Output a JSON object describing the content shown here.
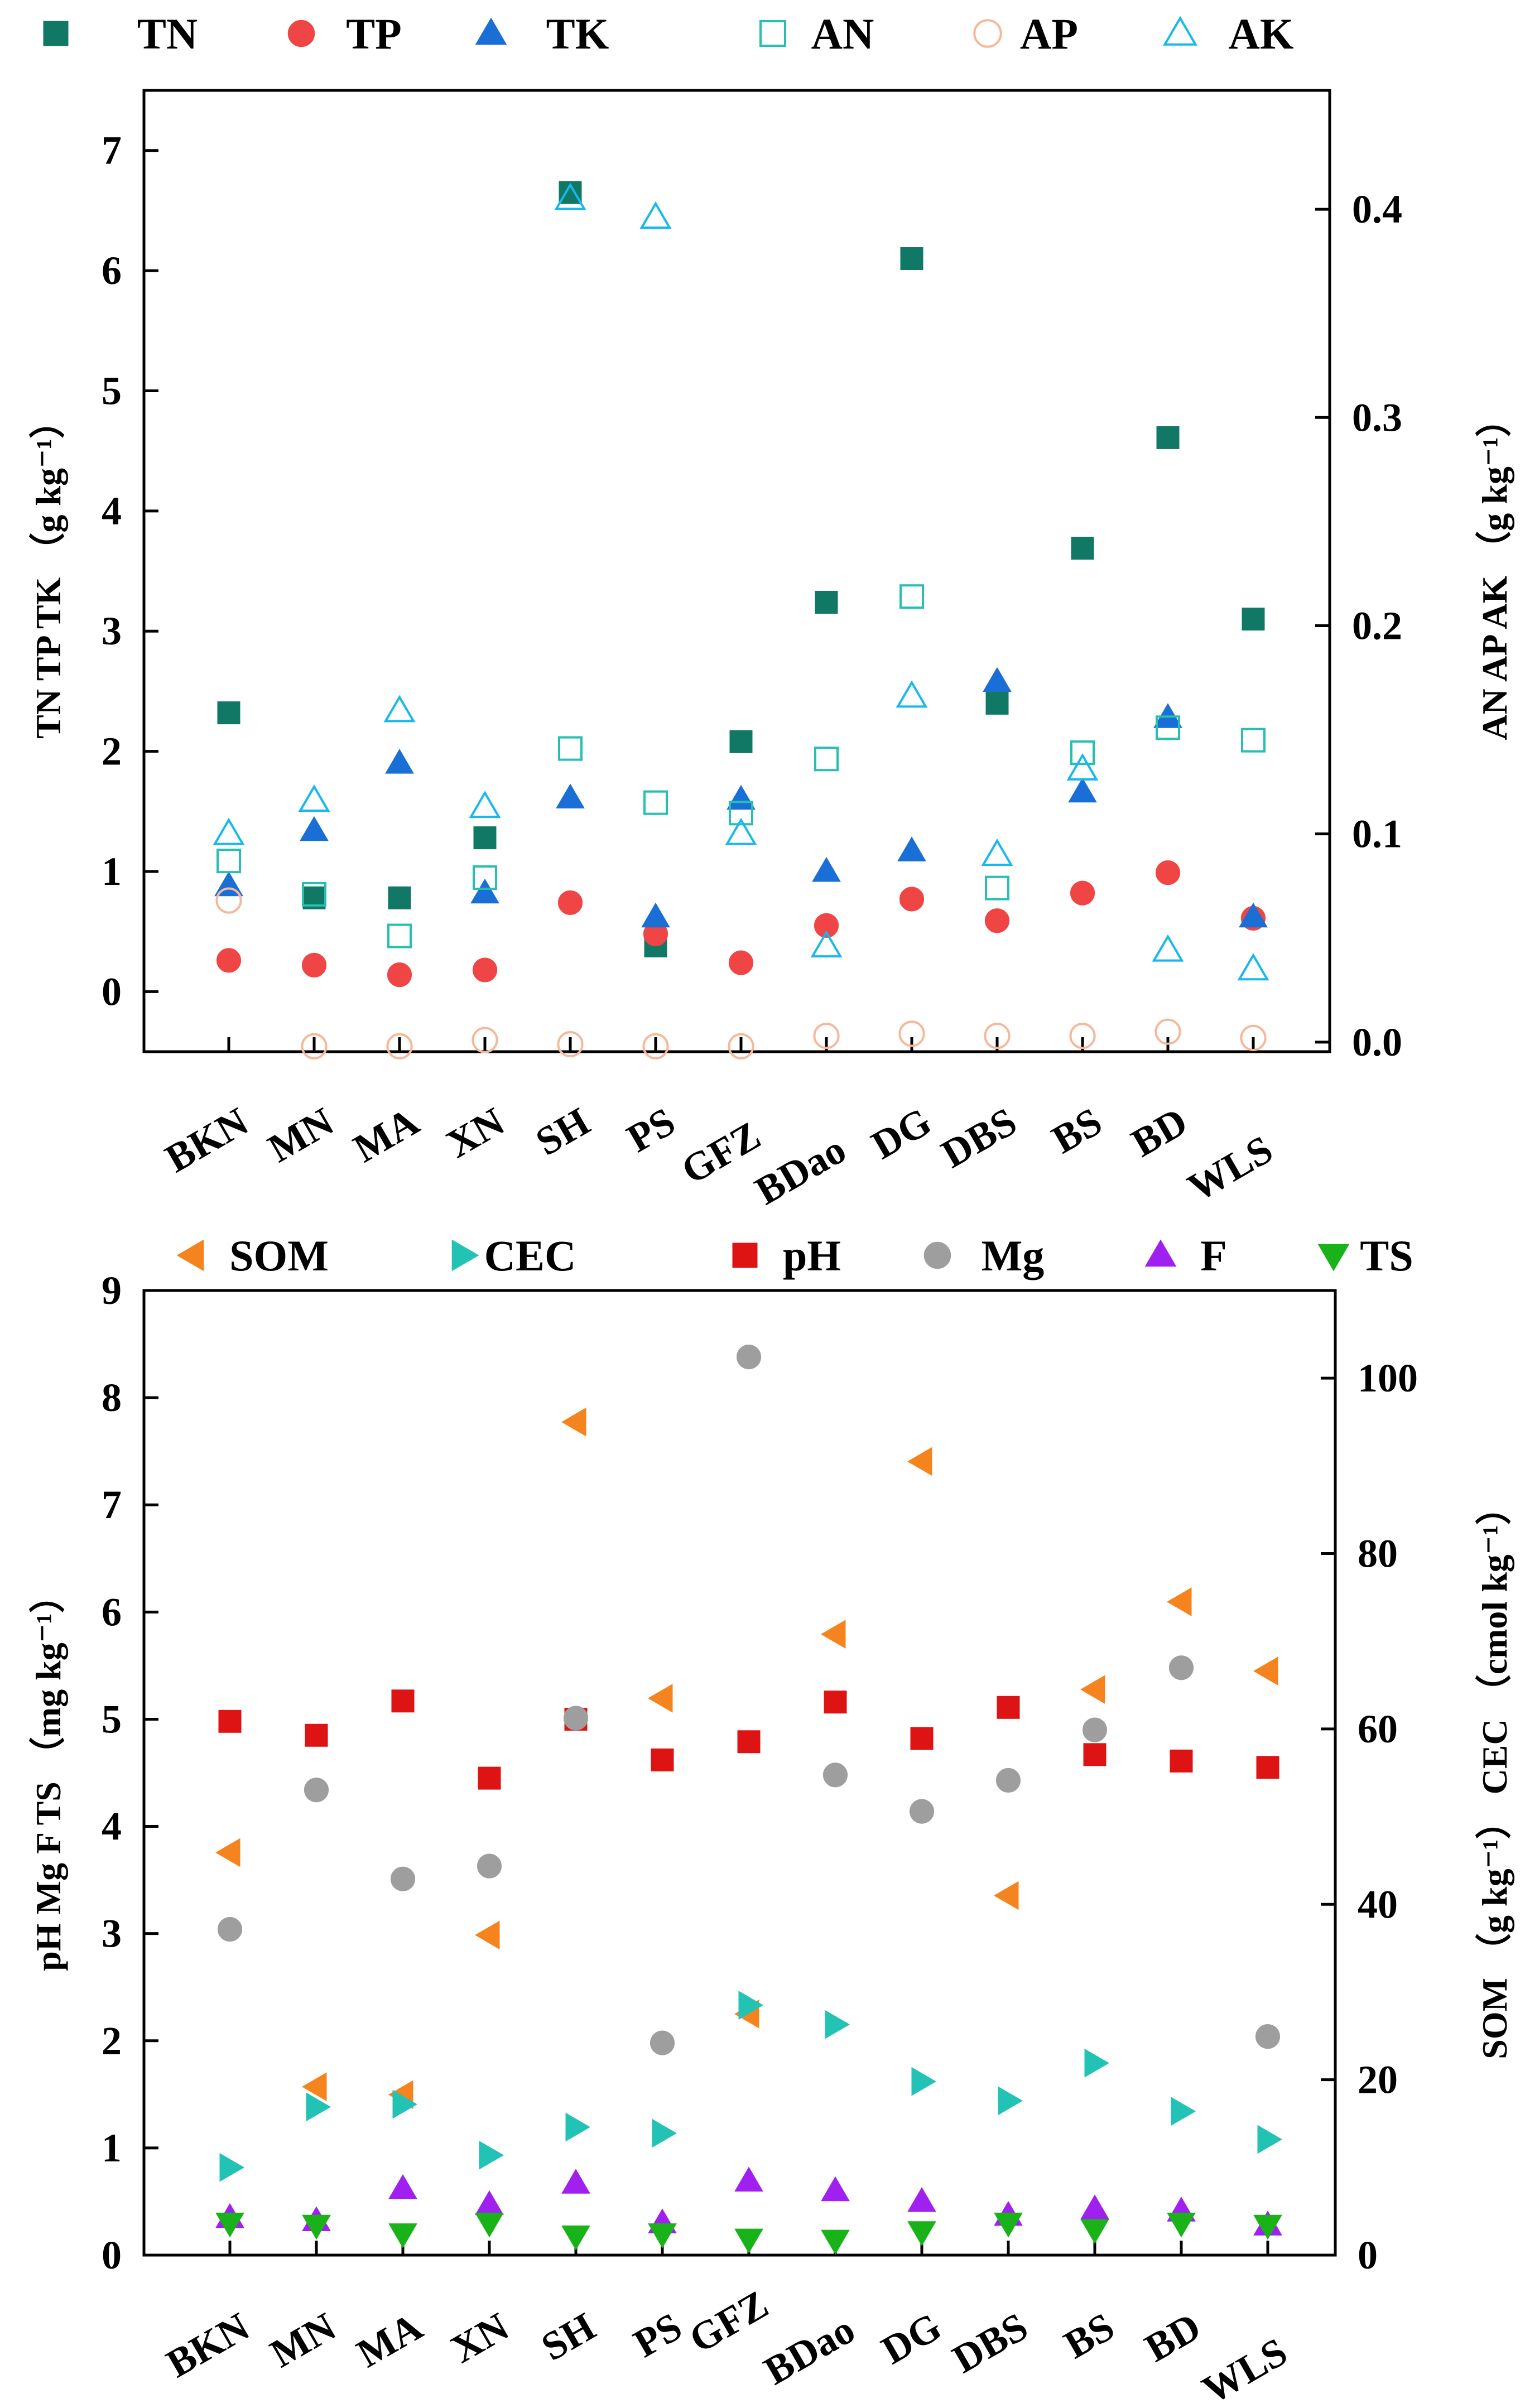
{
  "categories": [
    "BKN",
    "MN",
    "MA",
    "XN",
    "SH",
    "PS",
    "GFZ",
    "BDao",
    "DG",
    "DBS",
    "BS",
    "BD",
    "WLS"
  ],
  "chart_data": [
    {
      "type": "scatter",
      "id": "top",
      "left_axis": {
        "title": "TN TP TK （g kg⁻¹）",
        "range": [
          -0.5,
          7.5
        ],
        "ticks": [
          0,
          1,
          2,
          3,
          4,
          5,
          6,
          7
        ]
      },
      "right_axis": {
        "title": "AN AP AK （g kg⁻¹）",
        "range": [
          -0.0046,
          0.4571
        ],
        "ticks": [
          0.0,
          0.1,
          0.2,
          0.3,
          0.4
        ],
        "tick_labels": [
          "0.0",
          "0.1",
          "0.2",
          "0.3",
          "0.4"
        ]
      },
      "series": [
        {
          "name": "TN",
          "axis": "left",
          "marker": "square",
          "filled": true,
          "color": "#117865",
          "values": [
            2.32,
            0.78,
            0.78,
            1.28,
            6.65,
            0.38,
            2.08,
            3.24,
            6.1,
            2.4,
            3.69,
            4.61,
            3.1
          ]
        },
        {
          "name": "TP",
          "axis": "left",
          "marker": "circle",
          "filled": true,
          "color": "#f04545",
          "values": [
            0.26,
            0.22,
            0.14,
            0.18,
            0.74,
            0.48,
            0.24,
            0.55,
            0.77,
            0.59,
            0.82,
            0.99,
            0.61
          ]
        },
        {
          "name": "TK",
          "axis": "left",
          "marker": "triangle-up",
          "filled": true,
          "color": "#1a6fd6",
          "values": [
            0.88,
            1.34,
            1.9,
            0.82,
            1.61,
            0.62,
            1.6,
            1.0,
            1.17,
            2.58,
            1.66,
            2.28,
            0.62
          ]
        },
        {
          "name": "AN",
          "axis": "right",
          "marker": "square",
          "filled": false,
          "color": "#26bfb2",
          "values": [
            0.087,
            0.071,
            0.051,
            0.079,
            0.141,
            0.115,
            0.11,
            0.136,
            0.214,
            0.074,
            0.139,
            0.151,
            0.145
          ]
        },
        {
          "name": "AP",
          "axis": "right",
          "marker": "circle",
          "filled": false,
          "color": "#f6b89a",
          "values": [
            0.068,
            -0.002,
            -0.002,
            0.001,
            -0.001,
            -0.002,
            -0.002,
            0.003,
            0.004,
            0.003,
            0.003,
            0.005,
            0.002
          ]
        },
        {
          "name": "AK",
          "axis": "right",
          "marker": "triangle-up",
          "filled": false,
          "color": "#16b8ee",
          "values": [
            0.1,
            0.116,
            0.159,
            0.113,
            0.405,
            0.396,
            0.1,
            0.046,
            0.166,
            0.09,
            0.131,
            0.044,
            0.035
          ]
        }
      ]
    },
    {
      "type": "scatter",
      "id": "bottom",
      "left_axis": {
        "title": "pH Mg F TS （mg kg⁻¹）",
        "range": [
          0,
          9
        ],
        "ticks": [
          0,
          1,
          2,
          3,
          4,
          5,
          6,
          7,
          8,
          9
        ]
      },
      "right_axis": {
        "title": "SOM （g kg⁻¹） CEC （cmol kg⁻¹）",
        "range": [
          0,
          110
        ],
        "ticks": [
          0,
          20,
          40,
          60,
          80,
          100
        ]
      },
      "series": [
        {
          "name": "SOM",
          "axis": "right",
          "marker": "triangle-left",
          "filled": true,
          "color": "#f5841f",
          "values": [
            45.9,
            19.2,
            18.3,
            36.5,
            95,
            63.5,
            27.5,
            70.8,
            90.5,
            41,
            64.5,
            74.5,
            66.6
          ]
        },
        {
          "name": "CEC",
          "axis": "right",
          "marker": "triangle-right",
          "filled": true,
          "color": "#22c3b5",
          "values": [
            10,
            16.9,
            17.2,
            11.4,
            14.6,
            13.9,
            28.5,
            26.3,
            19.8,
            17.6,
            21.9,
            16.4,
            13.2
          ]
        },
        {
          "name": "pH",
          "axis": "left",
          "marker": "square",
          "filled": true,
          "color": "#de1414",
          "values": [
            4.98,
            4.85,
            5.17,
            4.45,
            5.0,
            4.62,
            4.79,
            5.16,
            4.82,
            5.11,
            4.67,
            4.61,
            4.55
          ]
        },
        {
          "name": "Mg",
          "axis": "left",
          "marker": "circle",
          "filled": true,
          "color": "#9e9e9e",
          "values": [
            3.04,
            4.34,
            3.51,
            3.63,
            5.01,
            1.98,
            8.38,
            4.48,
            4.14,
            4.43,
            4.9,
            5.48,
            2.04
          ]
        },
        {
          "name": "F",
          "axis": "left",
          "marker": "triangle-up",
          "filled": true,
          "color": "#a020f0",
          "values": [
            0.35,
            0.32,
            0.62,
            0.47,
            0.67,
            0.3,
            0.69,
            0.6,
            0.5,
            0.37,
            0.43,
            0.41,
            0.28
          ]
        },
        {
          "name": "TS",
          "axis": "left",
          "marker": "triangle-down",
          "filled": true,
          "color": "#19b319",
          "values": [
            0.3,
            0.28,
            0.2,
            0.3,
            0.18,
            0.2,
            0.15,
            0.14,
            0.22,
            0.3,
            0.24,
            0.3,
            0.28
          ]
        }
      ]
    }
  ]
}
